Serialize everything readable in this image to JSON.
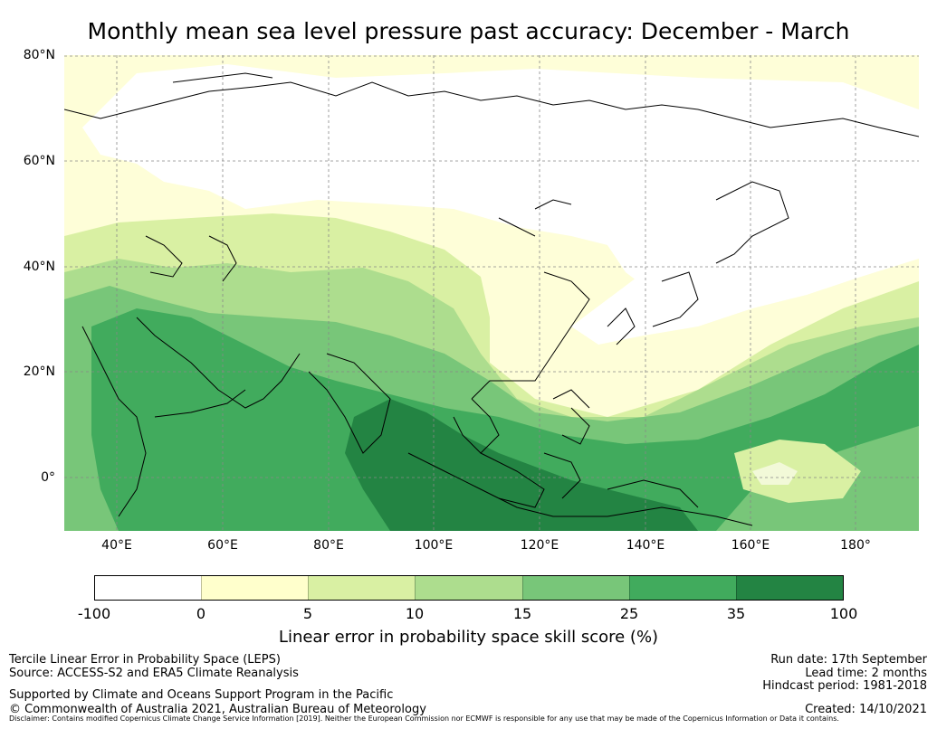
{
  "title": "Monthly mean sea level pressure past accuracy: December - March",
  "map": {
    "lat_labels": [
      "80°N",
      "60°N",
      "40°N",
      "20°N",
      "0°"
    ],
    "lon_labels": [
      "40°E",
      "60°E",
      "80°E",
      "100°E",
      "120°E",
      "140°E",
      "160°E",
      "180°"
    ],
    "extent": {
      "lon_min": 30,
      "lon_max": 192,
      "lat_min": -10,
      "lat_max": 80
    }
  },
  "colorbar": {
    "ticks": [
      "-100",
      "0",
      "5",
      "10",
      "15",
      "25",
      "35",
      "100"
    ],
    "colors": [
      "#ffffff",
      "#ffffcc",
      "#d9f0a3",
      "#addd8e",
      "#78c679",
      "#41ab5d",
      "#238443"
    ],
    "label": "Linear error in probability space skill score (%)"
  },
  "info": {
    "left": [
      "Tercile Linear Error in Probability Space (LEPS)",
      "Source: ACCESS-S2 and ERA5 Climate Reanalysis",
      "Supported by Climate and Oceans Support Program in the Pacific",
      "© Commonwealth of Australia 2021, Australian Bureau of Meteorology"
    ],
    "right": [
      "Run date: 17th September",
      "Lead time: 2 months",
      "Hindcast period: 1981-2018",
      "Created: 14/10/2021"
    ]
  },
  "disclaimer": "Disclaimer: Contains modified Copernicus Climate Change Service Information [2019]. Neither the European Commission nor ECMWF is responsible for any use that may be made of the Copernicus Information or Data it contains."
}
